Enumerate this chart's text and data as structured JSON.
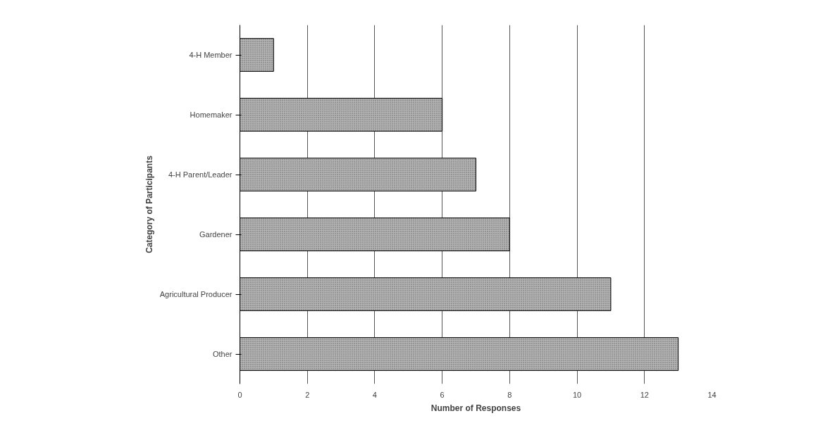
{
  "chart_data": {
    "type": "bar",
    "orientation": "horizontal",
    "xlabel": "Number of Responses",
    "ylabel": "Category of Participants",
    "categories": [
      "4-H Member",
      "Homemaker",
      "4-H Parent/Leader",
      "Gardener",
      "Agricultural Producer",
      "Other"
    ],
    "values": [
      1,
      6,
      7,
      8,
      11,
      13
    ],
    "color": "#b4b4b4",
    "xlim": [
      0,
      14
    ],
    "xticks": [
      0,
      2,
      4,
      6,
      8,
      10,
      12,
      14
    ],
    "grid": "x"
  }
}
